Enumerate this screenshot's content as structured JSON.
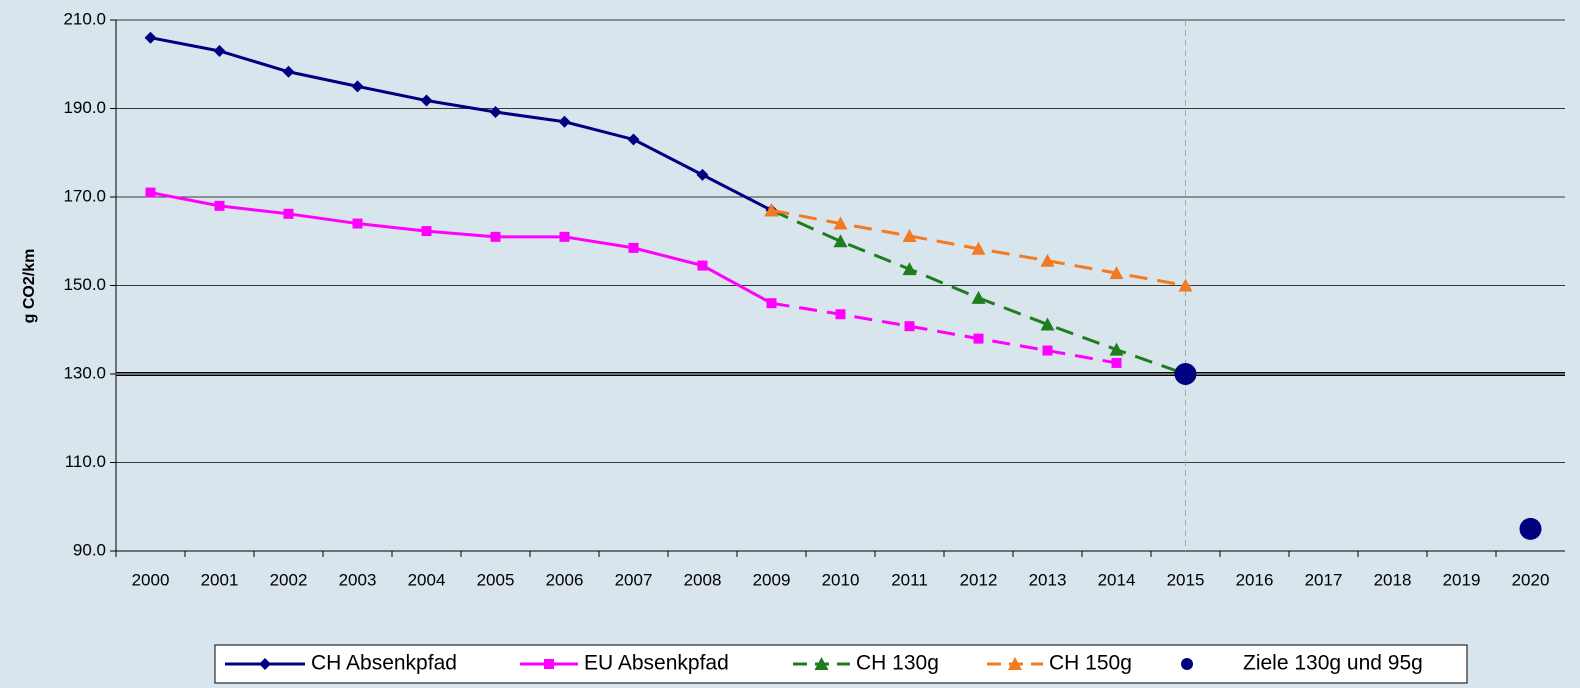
{
  "chart_data": {
    "type": "line",
    "ylabel": "g CO2/km",
    "categories": [
      "2000",
      "2001",
      "2002",
      "2003",
      "2004",
      "2005",
      "2006",
      "2007",
      "2008",
      "2009",
      "2010",
      "2011",
      "2012",
      "2013",
      "2014",
      "2015",
      "2016",
      "2017",
      "2018",
      "2019",
      "2020"
    ],
    "series": [
      {
        "name": "CH Absenkpfad",
        "color": "#000080",
        "marker": "diamond",
        "values": [
          206,
          203,
          198.3,
          195,
          191.8,
          189.2,
          187,
          183,
          175,
          167,
          null,
          null,
          null,
          null,
          null,
          null,
          null,
          null,
          null,
          null,
          null
        ]
      },
      {
        "name": "EU Absenkpfad",
        "color": "#ff00ff",
        "marker": "square",
        "dash_from": 9,
        "values": [
          171,
          168,
          166.2,
          164,
          162.3,
          161,
          161,
          158.5,
          154.5,
          146,
          143.5,
          140.8,
          138,
          135.3,
          132.5,
          null,
          null,
          null,
          null,
          null,
          null
        ]
      },
      {
        "name": "CH 130g",
        "color": "#1e7e1e",
        "marker": "triangle",
        "dash_from": 0,
        "values": [
          null,
          null,
          null,
          null,
          null,
          null,
          null,
          null,
          null,
          167,
          160,
          153.7,
          147.2,
          141.2,
          135.5,
          130,
          null,
          null,
          null,
          null,
          null
        ]
      },
      {
        "name": "CH 150g",
        "color": "#f47a20",
        "marker": "triangle",
        "dash_from": 0,
        "values": [
          null,
          null,
          null,
          null,
          null,
          null,
          null,
          null,
          null,
          167,
          164,
          161.2,
          158.3,
          155.6,
          152.8,
          150,
          null,
          null,
          null,
          null,
          null
        ]
      },
      {
        "name": "Ziele 130g und 95g",
        "color": "#000080",
        "marker": "circle",
        "line": false,
        "values": [
          null,
          null,
          null,
          null,
          null,
          null,
          null,
          null,
          null,
          null,
          null,
          null,
          null,
          null,
          null,
          130,
          null,
          null,
          null,
          null,
          95
        ]
      }
    ],
    "ylim": [
      90,
      210
    ],
    "yticks": [
      {
        "value": 90,
        "label": "90.0"
      },
      {
        "value": 110,
        "label": "110.0"
      },
      {
        "value": 130,
        "label": "130.0"
      },
      {
        "value": 150,
        "label": "150.0"
      },
      {
        "value": 170,
        "label": "170.0"
      },
      {
        "value": 190,
        "label": "190.0"
      },
      {
        "value": 210,
        "label": "210.0"
      }
    ],
    "grid": true,
    "hline": 130,
    "vline": "2015",
    "legend": "bottom"
  }
}
